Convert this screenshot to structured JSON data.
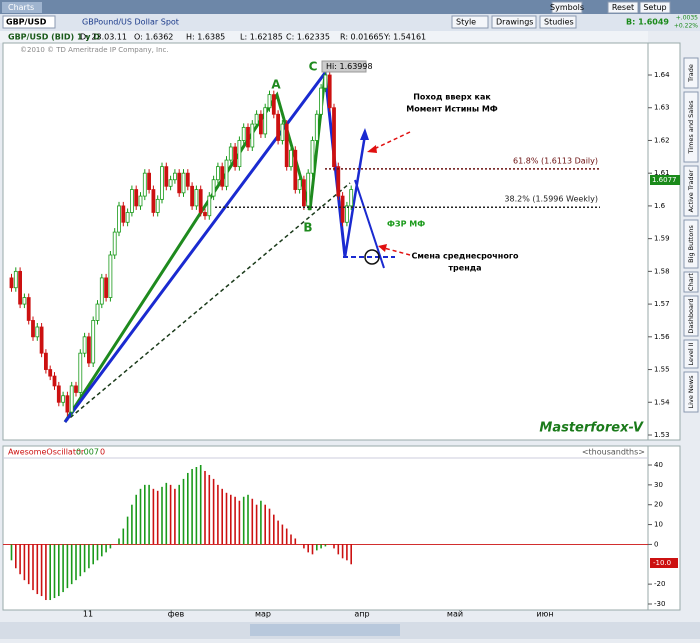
{
  "window": {
    "title": "Charts"
  },
  "toolbar": {
    "symbol": "GBP/USD",
    "description": "GBPound/US Dollar Spot",
    "buttons": [
      "Symbols",
      "Reset",
      "Setup"
    ],
    "tools": [
      "Style",
      "Drawings",
      "Studies"
    ],
    "bid": "B: 1.6049",
    "change": "+.0035",
    "change_pct": "+0.22%"
  },
  "info": {
    "instrument": "GBP/USD (BID) 1 y D",
    "fields": [
      "D: 23.03.11",
      "O: 1.6362",
      "H: 1.6385",
      "L: 1.62185",
      "C: 1.62335",
      "R: 0.01665",
      "Y: 1.54161"
    ],
    "copyright": "©2010 © TD Ameritrade IP Company, Inc."
  },
  "price_chart": {
    "ylim": [
      1.53,
      1.64
    ],
    "yticks": [
      1.53,
      1.54,
      1.55,
      1.56,
      1.57,
      1.58,
      1.59,
      1.6,
      1.61,
      1.62,
      1.63,
      1.64
    ],
    "open": 1.578,
    "closes": [
      1.575,
      1.58,
      1.57,
      1.572,
      1.565,
      1.56,
      1.563,
      1.555,
      1.55,
      1.548,
      1.545,
      1.54,
      1.542,
      1.537,
      1.545,
      1.543,
      1.555,
      1.56,
      1.552,
      1.565,
      1.57,
      1.578,
      1.572,
      1.585,
      1.592,
      1.6,
      1.595,
      1.598,
      1.605,
      1.6,
      1.603,
      1.61,
      1.605,
      1.598,
      1.602,
      1.612,
      1.606,
      1.608,
      1.61,
      1.604,
      1.61,
      1.606,
      1.6,
      1.605,
      1.598,
      1.597,
      1.603,
      1.608,
      1.612,
      1.606,
      1.614,
      1.618,
      1.612,
      1.62,
      1.624,
      1.618,
      1.625,
      1.628,
      1.622,
      1.63,
      1.634,
      1.628,
      1.62,
      1.625,
      1.612,
      1.617,
      1.605,
      1.608,
      1.6,
      1.61,
      1.62,
      1.628,
      1.636,
      1.64,
      1.63,
      1.612,
      1.603,
      1.595,
      1.6,
      1.605
    ],
    "up_color": "#1a9a1a",
    "down_color": "#cc1111",
    "current_label": "1.6077",
    "hi_label": "Hi: 1.63998",
    "points": [
      "A",
      "B",
      "C"
    ],
    "fib_levels": [
      {
        "label": "61.8% (1.6113 Daily)",
        "value": 1.6113,
        "color": "#6b1010"
      },
      {
        "label": "38.2% (1.5996 Weekly)",
        "value": 1.5996,
        "color": "#222222"
      }
    ],
    "annotations": {
      "up_move": [
        "Поход вверх как",
        "Момент Истины МФ"
      ],
      "fzr": "ФЗР МФ",
      "trend_change": [
        "Смена среднесрочного",
        "тренда"
      ],
      "brand": "Masterforex-V"
    }
  },
  "oscillator": {
    "name": "AwesomeOscillator",
    "value": "0.007",
    "zero": "0",
    "units": "<thousandths>",
    "current_label": "-10.0",
    "ylim": [
      -30,
      40
    ],
    "yticks": [
      40,
      30,
      20,
      10,
      0,
      -20,
      -30
    ],
    "values": [
      -8,
      -12,
      -15,
      -18,
      -20,
      -23,
      -25,
      -26,
      -28,
      -28,
      -27,
      -26,
      -24,
      -22,
      -20,
      -18,
      -16,
      -14,
      -12,
      -10,
      -8,
      -6,
      -4,
      -2,
      0,
      3,
      8,
      14,
      20,
      25,
      28,
      30,
      30,
      28,
      27,
      29,
      31,
      30,
      28,
      30,
      33,
      36,
      38,
      39,
      40,
      37,
      35,
      33,
      30,
      28,
      26,
      25,
      24,
      22,
      24,
      25,
      23,
      20,
      22,
      20,
      18,
      15,
      12,
      10,
      8,
      5,
      3,
      0,
      -2,
      -4,
      -5,
      -3,
      -2,
      -1,
      0,
      -2,
      -5,
      -7,
      -8,
      -10
    ],
    "up_color": "#1a9a1a",
    "down_color": "#cc1111"
  },
  "x_labels": [
    "11",
    "фев",
    "мар",
    "апр",
    "май",
    "июн"
  ],
  "side_tabs": [
    "Trade",
    "Times and Sales",
    "Active Trader",
    "Big Buttons",
    "Chart",
    "Dashboard",
    "Level II",
    "Live News"
  ]
}
